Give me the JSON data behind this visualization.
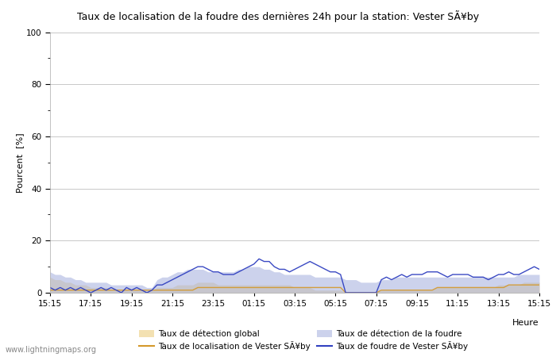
{
  "title": "Taux de localisation de la foudre des dernières 24h pour la station: Vester SÃ¥by",
  "xlabel": "Heure",
  "ylabel": "Pourcent  [%]",
  "x_ticks": [
    "15:15",
    "17:15",
    "19:15",
    "21:15",
    "23:15",
    "01:15",
    "03:15",
    "05:15",
    "07:15",
    "09:15",
    "11:15",
    "13:15",
    "15:15"
  ],
  "ylim": [
    0,
    100
  ],
  "yticks": [
    0,
    20,
    40,
    60,
    80,
    100
  ],
  "background_color": "#ffffff",
  "grid_color": "#c8c8c8",
  "watermark": "www.lightningmaps.org",
  "global_detection_fill_color": "#f0d898",
  "global_detection_fill_alpha": 0.75,
  "lightning_detection_fill_color": "#aab4e0",
  "lightning_detection_fill_alpha": 0.6,
  "global_line_color": "#d4982a",
  "lightning_line_color": "#3040c0",
  "global_line_alpha": 0.9,
  "lightning_line_alpha": 0.95,
  "n_points": 97,
  "global_detection": [
    6,
    5,
    5,
    4,
    4,
    3,
    3,
    3,
    2,
    2,
    2,
    2,
    1,
    1,
    1,
    1,
    1,
    1,
    1,
    1,
    1,
    2,
    2,
    2,
    2,
    3,
    3,
    3,
    3,
    4,
    4,
    4,
    4,
    3,
    3,
    3,
    3,
    3,
    3,
    3,
    3,
    3,
    3,
    3,
    3,
    3,
    3,
    3,
    2,
    2,
    2,
    2,
    1,
    1,
    1,
    1,
    1,
    1,
    0,
    0,
    0,
    0,
    0,
    0,
    0,
    1,
    1,
    1,
    1,
    1,
    1,
    1,
    1,
    1,
    1,
    1,
    2,
    2,
    2,
    2,
    2,
    2,
    2,
    2,
    2,
    2,
    2,
    2,
    3,
    3,
    3,
    3,
    3,
    4,
    4,
    4,
    4
  ],
  "lightning_detection": [
    8,
    7,
    7,
    6,
    6,
    5,
    5,
    4,
    4,
    4,
    4,
    4,
    3,
    3,
    3,
    3,
    3,
    3,
    3,
    2,
    2,
    5,
    6,
    6,
    7,
    8,
    8,
    9,
    9,
    9,
    9,
    8,
    8,
    8,
    8,
    8,
    8,
    9,
    9,
    10,
    10,
    10,
    9,
    9,
    8,
    8,
    7,
    7,
    7,
    7,
    7,
    7,
    6,
    6,
    6,
    6,
    6,
    6,
    5,
    5,
    5,
    4,
    4,
    4,
    4,
    5,
    5,
    5,
    6,
    6,
    6,
    6,
    6,
    6,
    6,
    6,
    6,
    6,
    6,
    6,
    6,
    6,
    6,
    6,
    6,
    6,
    6,
    6,
    6,
    6,
    6,
    6,
    7,
    7,
    7,
    7,
    7
  ],
  "global_loc_line": [
    1,
    1,
    1,
    1,
    1,
    1,
    1,
    1,
    1,
    1,
    1,
    1,
    1,
    1,
    1,
    1,
    1,
    1,
    1,
    1,
    1,
    1,
    1,
    1,
    1,
    1,
    1,
    1,
    1,
    2,
    2,
    2,
    2,
    2,
    2,
    2,
    2,
    2,
    2,
    2,
    2,
    2,
    2,
    2,
    2,
    2,
    2,
    2,
    2,
    2,
    2,
    2,
    2,
    2,
    2,
    2,
    2,
    2,
    0,
    0,
    0,
    0,
    0,
    0,
    0,
    1,
    1,
    1,
    1,
    1,
    1,
    1,
    1,
    1,
    1,
    1,
    2,
    2,
    2,
    2,
    2,
    2,
    2,
    2,
    2,
    2,
    2,
    2,
    2,
    2,
    3,
    3,
    3,
    3,
    3,
    3,
    3
  ],
  "lightning_loc_line": [
    2,
    1,
    2,
    1,
    2,
    1,
    2,
    1,
    0,
    1,
    2,
    1,
    2,
    1,
    0,
    2,
    1,
    2,
    1,
    0,
    1,
    3,
    3,
    4,
    5,
    6,
    7,
    8,
    9,
    10,
    10,
    9,
    8,
    8,
    7,
    7,
    7,
    8,
    9,
    10,
    11,
    13,
    12,
    12,
    10,
    9,
    9,
    8,
    9,
    10,
    11,
    12,
    11,
    10,
    9,
    8,
    8,
    7,
    0,
    0,
    0,
    0,
    0,
    0,
    0,
    5,
    6,
    5,
    6,
    7,
    6,
    7,
    7,
    7,
    8,
    8,
    8,
    7,
    6,
    7,
    7,
    7,
    7,
    6,
    6,
    6,
    5,
    6,
    7,
    7,
    8,
    7,
    7,
    8,
    9,
    10,
    9
  ],
  "legend": [
    {
      "type": "patch",
      "color": "#f0d898",
      "alpha": 0.75,
      "label": "Taux de détection global"
    },
    {
      "type": "line",
      "color": "#d4982a",
      "label": "Taux de localisation de Vester SÃ¥by"
    },
    {
      "type": "patch",
      "color": "#aab4e0",
      "alpha": 0.6,
      "label": "Taux de détection de la foudre"
    },
    {
      "type": "line",
      "color": "#3040c0",
      "label": "Taux de foudre de Vester SÃ¥by"
    }
  ]
}
